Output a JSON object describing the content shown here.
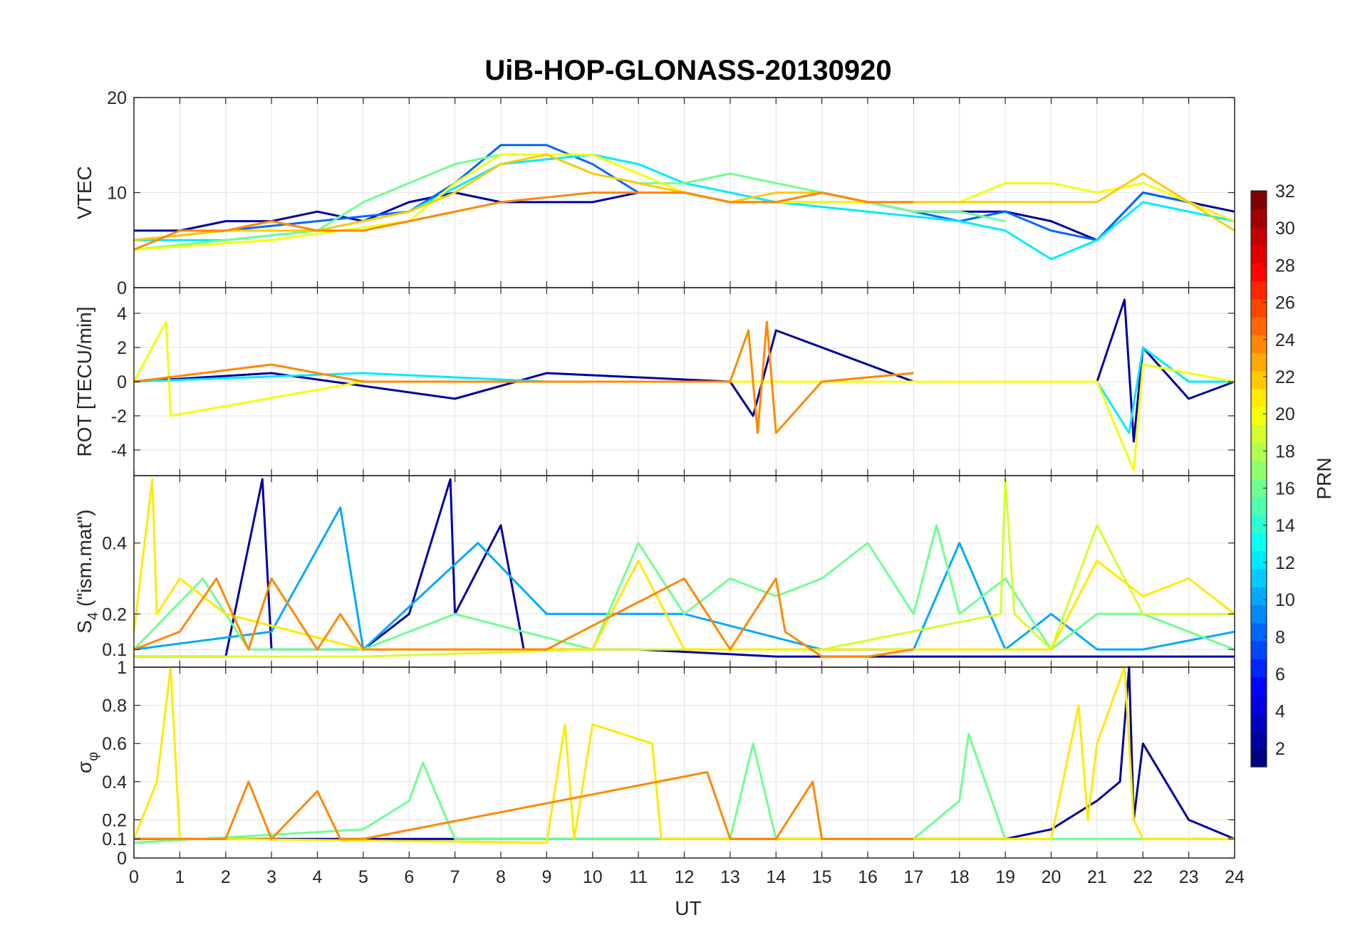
{
  "chart_data": {
    "type": "line",
    "title": "UiB-HOP-GLONASS-20130920",
    "xlabel": "UT",
    "xlim": [
      0,
      24
    ],
    "x_ticks": [
      "0",
      "1",
      "2",
      "3",
      "4",
      "5",
      "6",
      "7",
      "8",
      "9",
      "10",
      "11",
      "12",
      "13",
      "14",
      "15",
      "16",
      "17",
      "18",
      "19",
      "20",
      "21",
      "22",
      "23",
      "24"
    ],
    "grid": true,
    "panels": [
      {
        "id": "vtec",
        "ylabel": "VTEC",
        "ylim": [
          0,
          20
        ],
        "y_ticks": [
          0,
          10,
          20
        ],
        "y_tick_labels": [
          "0",
          "10",
          "20"
        ],
        "series": [
          {
            "prn": 2,
            "x": [
              0,
              1,
              2,
              3,
              4,
              5,
              6,
              7,
              8,
              9,
              10,
              11,
              12,
              13,
              14,
              15,
              16,
              17,
              18,
              19,
              20,
              21,
              22,
              23,
              24
            ],
            "y": [
              6,
              6,
              7,
              7,
              8,
              7,
              9,
              10,
              9,
              9,
              9,
              10,
              10,
              9,
              9,
              9,
              9,
              8,
              8,
              8,
              7,
              5,
              10,
              9,
              8
            ]
          },
          {
            "prn": 8,
            "x": [
              0,
              2,
              4,
              6,
              7,
              8,
              9,
              10,
              11,
              12,
              13,
              14,
              15,
              16,
              17,
              18,
              19,
              20,
              21,
              22,
              23,
              24
            ],
            "y": [
              5,
              6,
              7,
              8,
              11,
              15,
              15,
              13,
              10,
              10,
              9,
              9,
              10,
              9,
              8,
              7,
              8,
              6,
              5,
              10,
              9,
              7
            ]
          },
          {
            "prn": 12,
            "x": [
              0,
              2,
              4,
              6,
              8,
              10,
              11,
              12,
              13,
              14,
              16,
              18,
              19,
              20,
              21,
              22,
              23,
              24
            ],
            "y": [
              5,
              5,
              6,
              8,
              13,
              14,
              13,
              11,
              10,
              9,
              8,
              7,
              6,
              3,
              5,
              9,
              8,
              7
            ]
          },
          {
            "prn": 16,
            "x": [
              0,
              2,
              4,
              5,
              6,
              7,
              8,
              9,
              10,
              11,
              12,
              13,
              14,
              15,
              16,
              17,
              18,
              19
            ],
            "y": [
              4,
              5,
              6,
              9,
              11,
              13,
              14,
              14,
              12,
              11,
              11,
              12,
              11,
              10,
              9,
              8,
              8,
              7
            ]
          },
          {
            "prn": 20,
            "x": [
              0,
              3,
              6,
              7,
              8,
              9,
              10,
              11,
              12,
              13,
              14,
              16,
              18,
              19,
              20,
              21,
              22,
              23,
              24
            ],
            "y": [
              4,
              5,
              7,
              11,
              14,
              14,
              14,
              12,
              10,
              9,
              9,
              9,
              9,
              11,
              11,
              10,
              11,
              9,
              7
            ]
          },
          {
            "prn": 22,
            "x": [
              0,
              2,
              4,
              6,
              7,
              8,
              9,
              10,
              11,
              12,
              13,
              14,
              15,
              16,
              17,
              21,
              22,
              23,
              24
            ],
            "y": [
              5,
              6,
              6,
              8,
              10,
              13,
              14,
              12,
              11,
              10,
              9,
              10,
              10,
              9,
              9,
              9,
              12,
              9,
              6
            ]
          },
          {
            "prn": 24,
            "x": [
              0,
              1,
              2,
              3,
              4,
              5,
              6,
              8,
              10,
              12,
              13,
              14,
              15,
              16,
              17
            ],
            "y": [
              4,
              6,
              6,
              7,
              6,
              6,
              7,
              9,
              10,
              10,
              9,
              9,
              10,
              9,
              9
            ]
          }
        ]
      },
      {
        "id": "rot",
        "ylabel": "ROT [TECU/min]",
        "ylim": [
          -5.5,
          5.5
        ],
        "y_ticks": [
          -4,
          -2,
          0,
          2,
          4
        ],
        "y_tick_labels": [
          "-4",
          "-2",
          "0",
          "2",
          "4"
        ],
        "series": [
          {
            "prn": 2,
            "x": [
              0,
              3,
              7,
              9,
              13,
              13.5,
              14,
              17,
              21,
              21.6,
              21.8,
              22,
              23,
              24
            ],
            "y": [
              0,
              0.5,
              -1,
              0.5,
              0,
              -2,
              3,
              0,
              0,
              4.8,
              -3.5,
              2,
              -1,
              0
            ]
          },
          {
            "prn": 12,
            "x": [
              0,
              5,
              9,
              13,
              17,
              21,
              21.7,
              22,
              23,
              24
            ],
            "y": [
              0,
              0.5,
              0,
              0,
              0,
              0,
              -3,
              2,
              0,
              0
            ]
          },
          {
            "prn": 20,
            "x": [
              0,
              0.7,
              0.8,
              5,
              9,
              13,
              17,
              21,
              21.8,
              22,
              24
            ],
            "y": [
              0,
              3.5,
              -2,
              0,
              0,
              0,
              0,
              0,
              -5.2,
              1,
              0
            ]
          },
          {
            "prn": 24,
            "x": [
              0,
              3,
              5,
              13,
              13.4,
              13.6,
              13.8,
              14,
              15,
              17
            ],
            "y": [
              0,
              1,
              0,
              0,
              3,
              -3,
              3.5,
              -3,
              0,
              0.5
            ]
          }
        ]
      },
      {
        "id": "s4",
        "ylabel": "S4 (\"ism.mat\")",
        "ylabel_main": "S",
        "ylabel_sub": "4",
        "ylabel_suffix": " (\"ism.mat\")",
        "ylim": [
          0.05,
          0.59
        ],
        "y_ticks": [
          0.1,
          0.2,
          0.4
        ],
        "y_tick_labels": [
          "0.1",
          "0.2",
          "0.4"
        ],
        "series": [
          {
            "prn": 2,
            "x": [
              0,
              2,
              2.8,
              3,
              5,
              6,
              6.9,
              7,
              8,
              8.5,
              9,
              11,
              14,
              17,
              20,
              21,
              24
            ],
            "y": [
              0.08,
              0.08,
              0.58,
              0.1,
              0.1,
              0.2,
              0.58,
              0.2,
              0.45,
              0.1,
              0.1,
              0.1,
              0.08,
              0.08,
              0.08,
              0.08,
              0.08
            ]
          },
          {
            "prn": 10,
            "x": [
              0,
              3,
              4.5,
              5,
              7.5,
              9,
              12,
              15,
              17,
              18,
              19,
              20,
              21,
              22,
              24
            ],
            "y": [
              0.1,
              0.15,
              0.5,
              0.1,
              0.4,
              0.2,
              0.2,
              0.1,
              0.1,
              0.4,
              0.1,
              0.2,
              0.1,
              0.1,
              0.15
            ]
          },
          {
            "prn": 16,
            "x": [
              0,
              1.5,
              2.5,
              5,
              7,
              10,
              11,
              12,
              13,
              14,
              15,
              16,
              17,
              17.5,
              18,
              19,
              20,
              21,
              22,
              24
            ],
            "y": [
              0.1,
              0.3,
              0.1,
              0.1,
              0.2,
              0.1,
              0.4,
              0.2,
              0.3,
              0.25,
              0.3,
              0.4,
              0.2,
              0.45,
              0.2,
              0.3,
              0.1,
              0.2,
              0.2,
              0.1
            ]
          },
          {
            "prn": 19,
            "x": [
              0,
              5,
              10,
              15,
              18.9,
              19,
              19.2,
              20,
              21,
              22,
              24
            ],
            "y": [
              0.08,
              0.08,
              0.1,
              0.1,
              0.2,
              0.58,
              0.2,
              0.1,
              0.45,
              0.2,
              0.2
            ]
          },
          {
            "prn": 21,
            "x": [
              0,
              0.4,
              0.5,
              1,
              2,
              5,
              10,
              11,
              12,
              13,
              14,
              20,
              21,
              22,
              23,
              24
            ],
            "y": [
              0.15,
              0.58,
              0.2,
              0.3,
              0.2,
              0.1,
              0.1,
              0.35,
              0.1,
              0.1,
              0.1,
              0.1,
              0.35,
              0.25,
              0.3,
              0.2
            ]
          },
          {
            "prn": 24,
            "x": [
              0,
              1,
              1.8,
              2.5,
              3,
              4,
              4.5,
              5,
              9,
              12,
              13,
              14,
              14.2,
              15,
              16,
              17
            ],
            "y": [
              0.1,
              0.15,
              0.3,
              0.1,
              0.3,
              0.1,
              0.2,
              0.1,
              0.1,
              0.3,
              0.1,
              0.3,
              0.15,
              0.08,
              0.08,
              0.1
            ]
          }
        ]
      },
      {
        "id": "sigma_phi",
        "ylabel": "σφ",
        "ylabel_main": "σ",
        "ylabel_sub": "φ",
        "ylim": [
          0,
          1
        ],
        "y_ticks": [
          0,
          0.1,
          0.2,
          0.4,
          0.6,
          0.8,
          1
        ],
        "y_tick_labels": [
          "0",
          "0.1",
          "0.2",
          "0.4",
          "0.6",
          "0.8",
          "1"
        ],
        "series": [
          {
            "prn": 2,
            "x": [
              0,
              5,
              10,
              12,
              15,
              19,
              20,
              21,
              21.5,
              21.7,
              21.8,
              22,
              23,
              24
            ],
            "y": [
              0.1,
              0.1,
              0.1,
              0.1,
              0.1,
              0.1,
              0.15,
              0.3,
              0.4,
              1,
              0.2,
              0.6,
              0.2,
              0.1
            ]
          },
          {
            "prn": 16,
            "x": [
              0,
              5,
              6,
              6.3,
              7,
              11,
              13,
              13.5,
              14,
              17,
              18,
              18.2,
              19,
              20,
              24
            ],
            "y": [
              0.08,
              0.15,
              0.3,
              0.5,
              0.1,
              0.1,
              0.1,
              0.6,
              0.1,
              0.1,
              0.3,
              0.65,
              0.1,
              0.1,
              0.1
            ]
          },
          {
            "prn": 21,
            "x": [
              0,
              0.5,
              0.8,
              1,
              2,
              9,
              9.4,
              9.6,
              10,
              11.3,
              11.5,
              12,
              20,
              20.6,
              20.8,
              21,
              21.6,
              21.8,
              22,
              24
            ],
            "y": [
              0.1,
              0.4,
              1,
              0.1,
              0.1,
              0.08,
              0.7,
              0.1,
              0.7,
              0.6,
              0.1,
              0.1,
              0.1,
              0.8,
              0.2,
              0.6,
              1,
              0.2,
              0.1,
              0.1
            ]
          },
          {
            "prn": 24,
            "x": [
              0,
              2,
              2.5,
              3,
              4,
              4.5,
              5,
              12.5,
              13,
              14,
              14.8,
              15,
              16,
              17
            ],
            "y": [
              0.1,
              0.1,
              0.4,
              0.1,
              0.35,
              0.1,
              0.1,
              0.45,
              0.1,
              0.1,
              0.4,
              0.1,
              0.1,
              0.1
            ]
          }
        ]
      }
    ],
    "colorbar": {
      "label": "PRN",
      "range": [
        1,
        32
      ],
      "colormap": "jet",
      "ticks": [
        2,
        4,
        6,
        8,
        10,
        12,
        14,
        16,
        18,
        20,
        22,
        24,
        26,
        28,
        30,
        32
      ],
      "tick_labels": [
        "2",
        "4",
        "6",
        "8",
        "10",
        "12",
        "14",
        "16",
        "18",
        "20",
        "22",
        "24",
        "26",
        "28",
        "30",
        "32"
      ]
    }
  }
}
